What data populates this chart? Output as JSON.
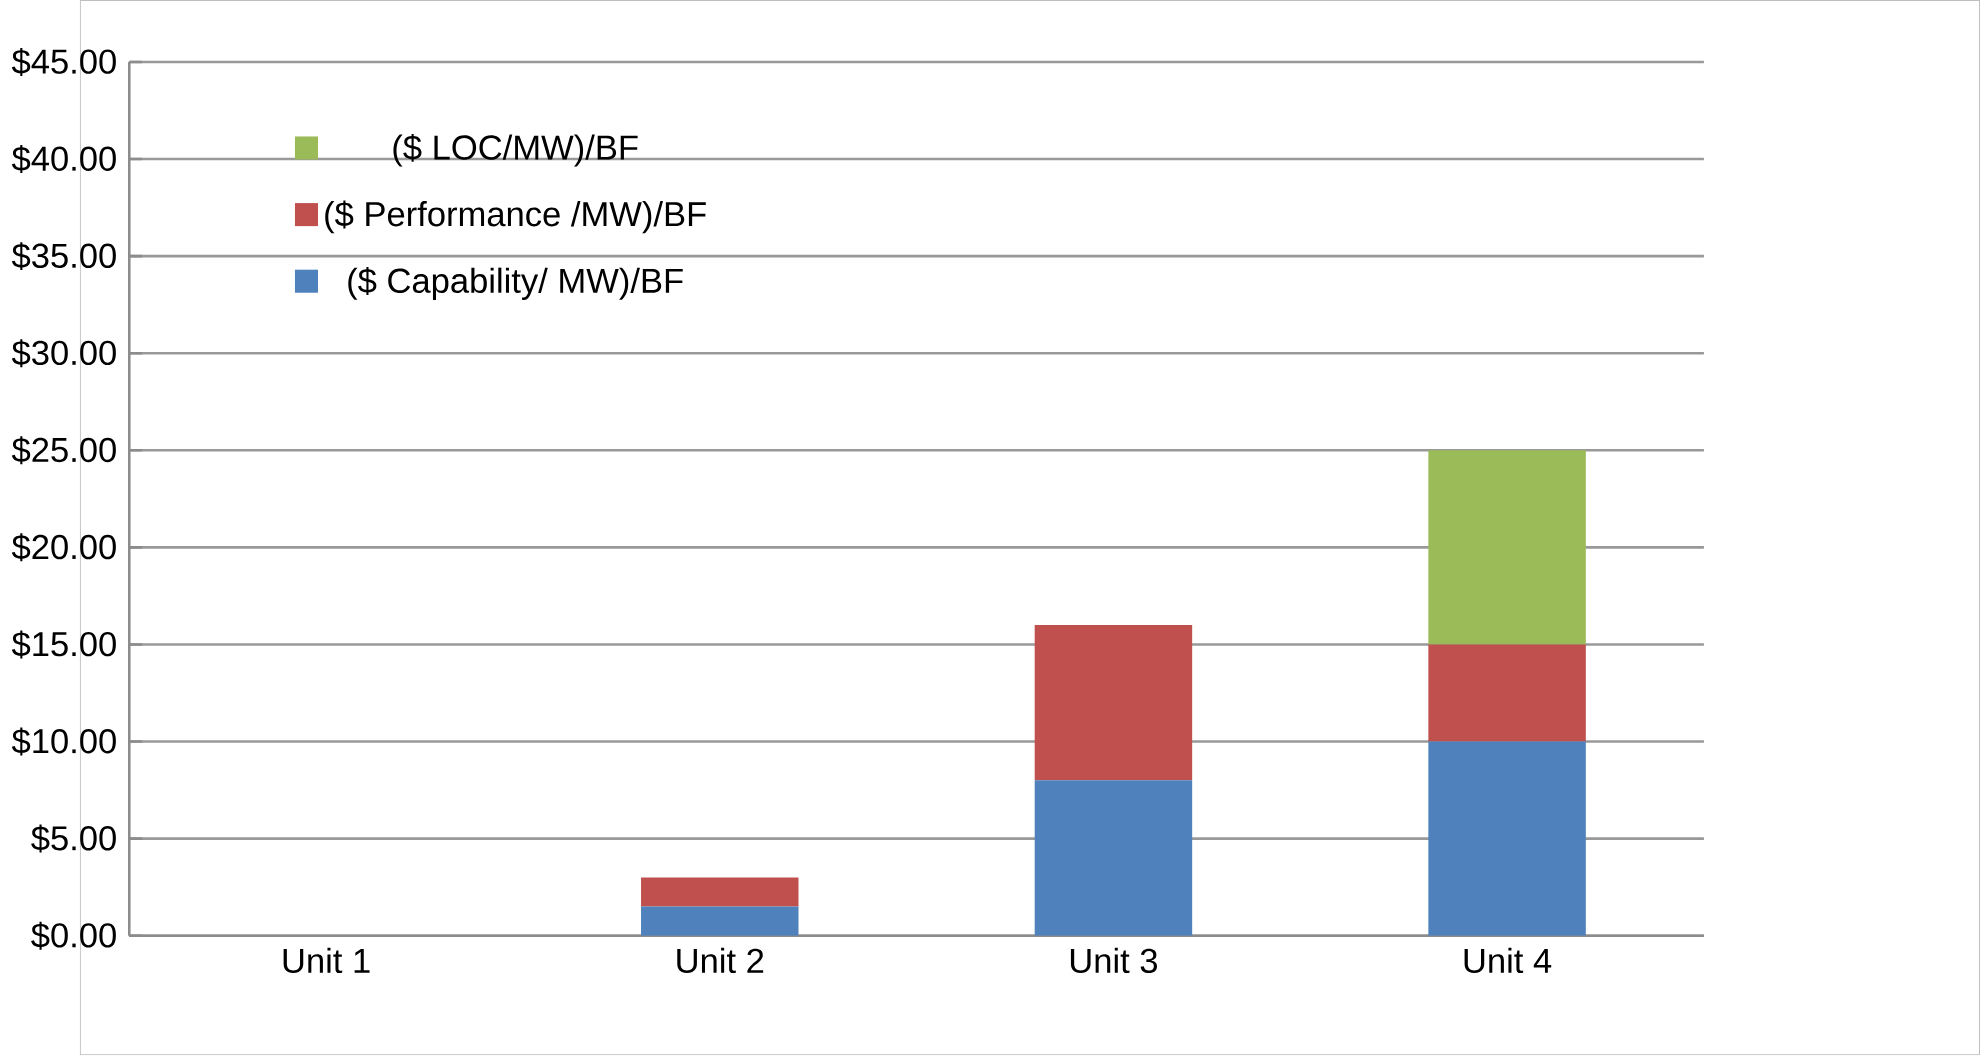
{
  "chart_data": {
    "type": "bar",
    "stacked": true,
    "categories": [
      "Unit 1",
      "Unit 2",
      "Unit 3",
      "Unit 4"
    ],
    "series": [
      {
        "name": "($ Capability/ MW)/BF",
        "color": "#4f81bd",
        "values": [
          0,
          1.5,
          8,
          10
        ]
      },
      {
        "name": "($ Performance /MW)/BF",
        "color": "#c0504d",
        "values": [
          0,
          1.5,
          8,
          5
        ]
      },
      {
        "name": "($ LOC/MW)/BF",
        "color": "#9bbb59",
        "values": [
          0,
          0,
          0,
          10
        ]
      }
    ],
    "ylim": [
      0,
      45
    ],
    "yticks": [
      {
        "value": 0,
        "label": "$0.00"
      },
      {
        "value": 5,
        "label": "$5.00"
      },
      {
        "value": 10,
        "label": "$10.00"
      },
      {
        "value": 15,
        "label": "$15.00"
      },
      {
        "value": 20,
        "label": "$20.00"
      },
      {
        "value": 25,
        "label": "$25.00"
      },
      {
        "value": 30,
        "label": "$30.00"
      },
      {
        "value": 35,
        "label": "$35.00"
      },
      {
        "value": 40,
        "label": "$40.00"
      },
      {
        "value": 45,
        "label": "$45.00"
      }
    ],
    "grid": "y",
    "legend": "top left"
  }
}
